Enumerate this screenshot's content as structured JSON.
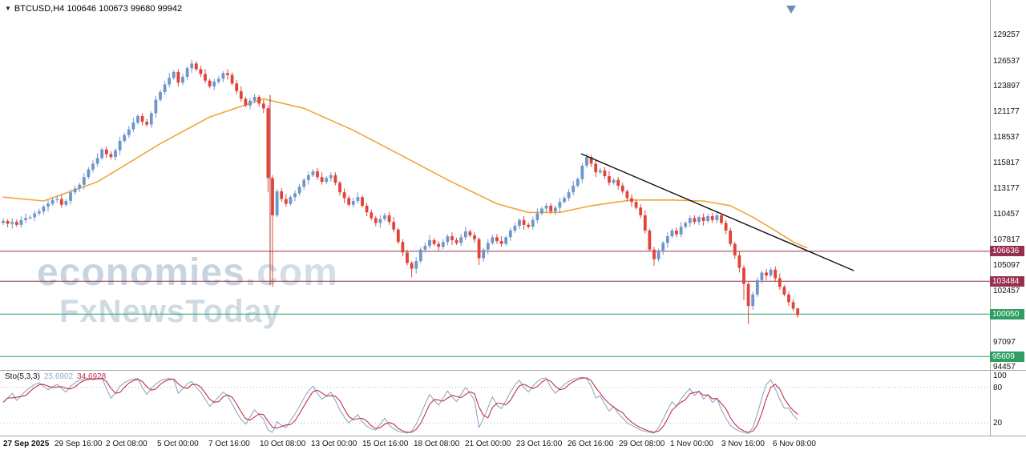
{
  "title_bar": {
    "text": "BTCUSD,H4 100646 100673 99680 99942"
  },
  "watermark": {
    "line1": "economies",
    "line1_suffix": ".com",
    "line2": "FxNewsToday"
  },
  "chart_data": {
    "type": "candlestick",
    "title": "BTCUSD,H4",
    "current_bar": {
      "open": 100646,
      "high": 100673,
      "low": 99680,
      "close": 99942
    },
    "ylim": [
      94200,
      132950
    ],
    "y_axis_ticks": [
      129257,
      126537,
      123897,
      121177,
      118537,
      115817,
      113177,
      110457,
      107817,
      105097,
      102457,
      97097,
      94457
    ],
    "x_axis_labels": [
      "27 Sep 2025",
      "29 Sep 16:00",
      "2 Oct 08:00",
      "5 Oct 00:00",
      "7 Oct 16:00",
      "10 Oct 08:00",
      "13 Oct 00:00",
      "15 Oct 16:00",
      "18 Oct 08:00",
      "21 Oct 00:00",
      "23 Oct 16:00",
      "26 Oct 16:00",
      "29 Oct 08:00",
      "1 Nov 00:00",
      "3 Nov 16:00",
      "6 Nov 08:00"
    ],
    "horizontal_levels": [
      {
        "price": 106636,
        "label": "106636",
        "kind": "resistance",
        "color": "#97304f"
      },
      {
        "price": 103484,
        "label": "103484",
        "kind": "resistance",
        "color": "#97304f"
      },
      {
        "price": 100050,
        "label": "100050",
        "kind": "support",
        "color": "#2e9e63"
      },
      {
        "price": 95609,
        "label": "95609",
        "kind": "support",
        "color": "#2e9e63"
      }
    ],
    "trendline": {
      "from_index": 128.75,
      "from_price": 116850,
      "to_index": 189.5,
      "to_price": 104600,
      "color": "#111111"
    },
    "vline": {
      "index": 59.46,
      "from_price": 123000,
      "to_price": 103100,
      "color": "#b03a34"
    },
    "ma_line": {
      "color": "#f0a638",
      "points": [
        [
          0,
          112300
        ],
        [
          9,
          111900
        ],
        [
          21,
          113900
        ],
        [
          35,
          117900
        ],
        [
          46,
          120700
        ],
        [
          58,
          122600
        ],
        [
          67,
          121600
        ],
        [
          78,
          119300
        ],
        [
          89,
          116600
        ],
        [
          99,
          114100
        ],
        [
          110,
          111600
        ],
        [
          117,
          110700
        ],
        [
          124,
          110700
        ],
        [
          131,
          111400
        ],
        [
          140,
          112000
        ],
        [
          149,
          112000
        ],
        [
          156,
          111900
        ],
        [
          162,
          111400
        ],
        [
          167,
          110200
        ],
        [
          172,
          108800
        ],
        [
          176,
          107600
        ],
        [
          179,
          107000
        ]
      ]
    },
    "colors": {
      "up": "#6e95cc",
      "down": "#e04438"
    },
    "candles": [
      [
        109600,
        110100,
        109350,
        109800
      ],
      [
        109800,
        110000,
        109150,
        109500
      ],
      [
        109500,
        110100,
        109000,
        109700
      ],
      [
        109700,
        109950,
        109200,
        109400
      ],
      [
        109400,
        110250,
        109100,
        109900
      ],
      [
        109900,
        110600,
        109600,
        110100
      ],
      [
        110100,
        110400,
        109900,
        110200
      ],
      [
        110200,
        110900,
        109800,
        110600
      ],
      [
        110600,
        111100,
        110350,
        110800
      ],
      [
        110800,
        111500,
        110450,
        111300
      ],
      [
        111300,
        112000,
        110800,
        111600
      ],
      [
        111600,
        112250,
        111400,
        112000
      ],
      [
        112000,
        112450,
        111700,
        112100
      ],
      [
        112100,
        112600,
        111200,
        111500
      ],
      [
        111500,
        112100,
        111300,
        111900
      ],
      [
        111900,
        113100,
        111500,
        112800
      ],
      [
        112800,
        113500,
        112550,
        113200
      ],
      [
        113200,
        113800,
        112850,
        113600
      ],
      [
        113600,
        114800,
        113100,
        114400
      ],
      [
        114400,
        115450,
        114200,
        115200
      ],
      [
        115200,
        116150,
        114900,
        115800
      ],
      [
        115800,
        116900,
        115500,
        116400
      ],
      [
        116400,
        117500,
        116200,
        117300
      ],
      [
        117300,
        117600,
        116400,
        116800
      ],
      [
        116800,
        117100,
        116250,
        116500
      ],
      [
        116500,
        117400,
        116150,
        117200
      ],
      [
        117200,
        118600,
        116700,
        118200
      ],
      [
        118200,
        119050,
        118000,
        118800
      ],
      [
        118800,
        119750,
        118500,
        119400
      ],
      [
        119400,
        120600,
        119100,
        120100
      ],
      [
        120100,
        121000,
        119900,
        120800
      ],
      [
        120800,
        121100,
        119800,
        120200
      ],
      [
        120200,
        120500,
        119650,
        119900
      ],
      [
        119900,
        121300,
        119550,
        121100
      ],
      [
        121100,
        122900,
        120600,
        122500
      ],
      [
        122500,
        123550,
        122300,
        123300
      ],
      [
        123300,
        124450,
        123000,
        124100
      ],
      [
        124100,
        125300,
        123800,
        124800
      ],
      [
        124800,
        125600,
        124600,
        125400
      ],
      [
        125400,
        125700,
        123900,
        124300
      ],
      [
        124300,
        125200,
        124050,
        124900
      ],
      [
        124900,
        126000,
        124550,
        125800
      ],
      [
        125800,
        126700,
        125300,
        126300
      ],
      [
        126300,
        126550,
        125500,
        125700
      ],
      [
        125700,
        126050,
        124900,
        125200
      ],
      [
        125200,
        125700,
        124200,
        124500
      ],
      [
        124500,
        124700,
        123700,
        123900
      ],
      [
        123900,
        124700,
        123500,
        124400
      ],
      [
        124400,
        125000,
        124150,
        124700
      ],
      [
        124700,
        125500,
        124350,
        125300
      ],
      [
        125300,
        125700,
        124600,
        125100
      ],
      [
        125100,
        125350,
        124000,
        124200
      ],
      [
        124200,
        124550,
        123100,
        123400
      ],
      [
        123400,
        123900,
        122300,
        122600
      ],
      [
        122600,
        122800,
        121700,
        121900
      ],
      [
        121900,
        122700,
        121500,
        122400
      ],
      [
        122400,
        123100,
        122150,
        122800
      ],
      [
        122800,
        123000,
        121750,
        122100
      ],
      [
        122100,
        122500,
        121100,
        121600
      ],
      [
        121600,
        121900,
        112800,
        114300
      ],
      [
        114300,
        114600,
        102900,
        110400
      ],
      [
        110400,
        113150,
        110200,
        112900
      ],
      [
        112900,
        113250,
        111800,
        112100
      ],
      [
        112100,
        112600,
        111300,
        111600
      ],
      [
        111600,
        112500,
        111400,
        112300
      ],
      [
        112300,
        113000,
        111900,
        112700
      ],
      [
        112700,
        113700,
        112450,
        113400
      ],
      [
        113400,
        114300,
        113050,
        114100
      ],
      [
        114100,
        115000,
        113600,
        114600
      ],
      [
        114600,
        115250,
        114400,
        115000
      ],
      [
        115000,
        115350,
        114100,
        114400
      ],
      [
        114400,
        114900,
        113600,
        113900
      ],
      [
        113900,
        114500,
        113700,
        114300
      ],
      [
        114300,
        114900,
        113900,
        114600
      ],
      [
        114600,
        114900,
        113550,
        113800
      ],
      [
        113800,
        114000,
        112450,
        112800
      ],
      [
        112800,
        113200,
        111700,
        112200
      ],
      [
        112200,
        112450,
        111300,
        111500
      ],
      [
        111500,
        112250,
        111200,
        111900
      ],
      [
        111900,
        112800,
        111600,
        112300
      ],
      [
        112300,
        112500,
        111200,
        111400
      ],
      [
        111400,
        111700,
        110300,
        110700
      ],
      [
        110700,
        111000,
        109850,
        110100
      ],
      [
        110100,
        110300,
        109250,
        109600
      ],
      [
        109600,
        110400,
        109100,
        110000
      ],
      [
        110000,
        110650,
        109800,
        110400
      ],
      [
        110400,
        110750,
        109400,
        109700
      ],
      [
        109700,
        110200,
        108600,
        108900
      ],
      [
        108900,
        109100,
        107400,
        107600
      ],
      [
        107600,
        107900,
        106100,
        106500
      ],
      [
        106500,
        106800,
        105150,
        105400
      ],
      [
        105400,
        105600,
        103900,
        104800
      ],
      [
        104800,
        106000,
        104300,
        105600
      ],
      [
        105600,
        107050,
        105400,
        106800
      ],
      [
        106800,
        107550,
        106500,
        107200
      ],
      [
        107200,
        108300,
        106900,
        107800
      ],
      [
        107800,
        108000,
        107200,
        107400
      ],
      [
        107400,
        107700,
        106700,
        107100
      ],
      [
        107100,
        107900,
        106850,
        107600
      ],
      [
        107600,
        108400,
        107250,
        108200
      ],
      [
        108200,
        108600,
        107300,
        107800
      ],
      [
        107800,
        108050,
        107300,
        107500
      ],
      [
        107500,
        108450,
        107200,
        108100
      ],
      [
        108100,
        109200,
        107800,
        108700
      ],
      [
        108700,
        108900,
        108100,
        108300
      ],
      [
        108300,
        108600,
        107500,
        107900
      ],
      [
        107900,
        108100,
        105200,
        105900
      ],
      [
        105900,
        107000,
        105550,
        106800
      ],
      [
        106800,
        107900,
        106300,
        107500
      ],
      [
        107500,
        108350,
        107300,
        108100
      ],
      [
        108100,
        108450,
        107400,
        107700
      ],
      [
        107700,
        108200,
        107100,
        107400
      ],
      [
        107400,
        108300,
        107200,
        108100
      ],
      [
        108100,
        109100,
        107700,
        108800
      ],
      [
        108800,
        109600,
        108550,
        109300
      ],
      [
        109300,
        110100,
        108950,
        109900
      ],
      [
        109900,
        110300,
        108900,
        109400
      ],
      [
        109400,
        109650,
        109000,
        109200
      ],
      [
        109200,
        110250,
        108900,
        109900
      ],
      [
        109900,
        111100,
        109600,
        110600
      ],
      [
        110600,
        111300,
        110400,
        111100
      ],
      [
        111100,
        111700,
        110700,
        111400
      ],
      [
        111400,
        111700,
        110550,
        110800
      ],
      [
        110800,
        111400,
        110450,
        111200
      ],
      [
        111200,
        112200,
        110700,
        111800
      ],
      [
        111800,
        112450,
        111600,
        112200
      ],
      [
        112200,
        113150,
        111900,
        112800
      ],
      [
        112800,
        114000,
        112500,
        113500
      ],
      [
        113500,
        114400,
        113300,
        114200
      ],
      [
        114200,
        115900,
        113800,
        115600
      ],
      [
        115600,
        116800,
        115350,
        116500
      ],
      [
        116500,
        116700,
        115450,
        115800
      ],
      [
        115800,
        116200,
        114400,
        114900
      ],
      [
        114900,
        115350,
        114700,
        115100
      ],
      [
        115100,
        115450,
        114200,
        114500
      ],
      [
        114500,
        115000,
        113500,
        113800
      ],
      [
        113800,
        114300,
        113600,
        114100
      ],
      [
        114100,
        114400,
        113100,
        113500
      ],
      [
        113500,
        113800,
        112650,
        112900
      ],
      [
        112900,
        113100,
        111850,
        112200
      ],
      [
        112200,
        112600,
        111300,
        111800
      ],
      [
        111800,
        112050,
        111000,
        111200
      ],
      [
        111200,
        111550,
        110100,
        110400
      ],
      [
        110400,
        110900,
        108500,
        108800
      ],
      [
        108800,
        109000,
        106600,
        106800
      ],
      [
        106800,
        107100,
        105100,
        105800
      ],
      [
        105800,
        106900,
        105550,
        106600
      ],
      [
        106600,
        107700,
        106250,
        107500
      ],
      [
        107500,
        108600,
        107000,
        108200
      ],
      [
        108200,
        109050,
        108000,
        108800
      ],
      [
        108800,
        109150,
        108100,
        108400
      ],
      [
        108400,
        109700,
        108100,
        109200
      ],
      [
        109200,
        109800,
        109000,
        109600
      ],
      [
        109600,
        110400,
        109200,
        110100
      ],
      [
        110100,
        110400,
        109450,
        109700
      ],
      [
        109700,
        110400,
        109350,
        110200
      ],
      [
        110200,
        110600,
        109300,
        109800
      ],
      [
        109800,
        110550,
        109600,
        110300
      ],
      [
        110300,
        110650,
        109600,
        109900
      ],
      [
        109900,
        110900,
        109600,
        110400
      ],
      [
        110400,
        110600,
        109400,
        109600
      ],
      [
        109600,
        109900,
        108400,
        108800
      ],
      [
        108800,
        109100,
        107150,
        107400
      ],
      [
        107400,
        107600,
        105850,
        106200
      ],
      [
        106200,
        106600,
        104400,
        104900
      ],
      [
        104900,
        105150,
        101500,
        103200
      ],
      [
        103200,
        103400,
        99000,
        100900
      ],
      [
        100900,
        102400,
        100500,
        102100
      ],
      [
        102100,
        103900,
        101850,
        103600
      ],
      [
        103600,
        104600,
        103250,
        104400
      ],
      [
        104400,
        104800,
        103600,
        104100
      ],
      [
        104100,
        104950,
        103900,
        104700
      ],
      [
        104700,
        105050,
        103500,
        103800
      ],
      [
        103800,
        104300,
        102600,
        102900
      ],
      [
        102900,
        103100,
        101900,
        102100
      ],
      [
        102100,
        102400,
        100900,
        101300
      ],
      [
        101300,
        101600,
        100350,
        100600
      ],
      [
        100646,
        100673,
        99680,
        99942
      ]
    ],
    "stochastic": {
      "label": "Sto(5,3,3)",
      "k_display": "25.6902",
      "d_display": "34.6928",
      "k_color": "#8ca9cc",
      "d_color": "#c2314b",
      "levels": [
        100,
        80,
        20
      ],
      "ylim": [
        0,
        100
      ],
      "k_series": [
        55,
        62,
        70,
        58,
        66,
        74,
        80,
        85,
        88,
        82,
        76,
        81,
        85,
        78,
        72,
        82,
        88,
        92,
        94,
        95,
        93,
        95,
        96,
        78,
        62,
        70,
        82,
        88,
        92,
        94,
        95,
        80,
        68,
        78,
        86,
        91,
        94,
        95,
        93,
        70,
        78,
        86,
        90,
        80,
        72,
        60,
        48,
        56,
        64,
        72,
        66,
        52,
        38,
        26,
        18,
        30,
        42,
        34,
        26,
        8,
        4,
        22,
        16,
        12,
        24,
        35,
        48,
        62,
        74,
        82,
        70,
        60,
        66,
        72,
        58,
        42,
        30,
        20,
        27,
        34,
        22,
        14,
        10,
        8,
        18,
        28,
        16,
        10,
        6,
        4,
        3,
        6,
        18,
        34,
        52,
        68,
        58,
        50,
        62,
        74,
        64,
        56,
        68,
        80,
        70,
        58,
        12,
        28,
        46,
        64,
        50,
        44,
        58,
        72,
        84,
        92,
        80,
        72,
        82,
        90,
        95,
        96,
        80,
        70,
        78,
        85,
        90,
        94,
        96,
        97,
        95,
        82,
        62,
        66,
        52,
        40,
        48,
        36,
        28,
        20,
        16,
        12,
        8,
        6,
        4,
        3,
        12,
        26,
        42,
        56,
        48,
        60,
        70,
        78,
        66,
        74,
        60,
        68,
        54,
        62,
        42,
        28,
        16,
        10,
        6,
        4,
        2,
        12,
        35,
        62,
        85,
        93,
        78,
        60,
        45,
        45,
        33,
        25.69
      ]
    }
  }
}
